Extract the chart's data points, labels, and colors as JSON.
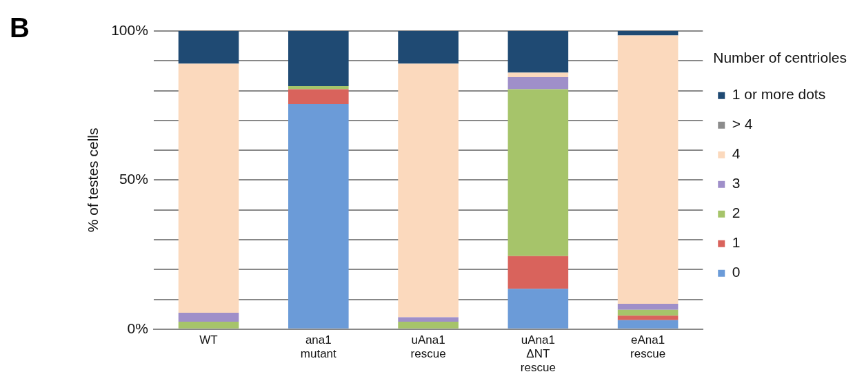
{
  "chart_data": {
    "type": "bar",
    "stacked": true,
    "categories": [
      "WT",
      "ana1\nmutant",
      "uAna1\nrescue",
      "uAna1\nΔNT\nrescue",
      "eAna1\nrescue"
    ],
    "ylabel": "% of testes cells",
    "legend_title": "Number of centrioles",
    "legend": "right",
    "ylim": [
      0,
      100
    ],
    "yticks": [
      {
        "value": 0,
        "label": "0%"
      },
      {
        "value": 10,
        "label": null
      },
      {
        "value": 20,
        "label": null
      },
      {
        "value": 30,
        "label": null
      },
      {
        "value": 40,
        "label": null
      },
      {
        "value": 50,
        "label": "50%"
      },
      {
        "value": 60,
        "label": null
      },
      {
        "value": 70,
        "label": null
      },
      {
        "value": 80,
        "label": null
      },
      {
        "value": 90,
        "label": null
      },
      {
        "value": 100,
        "label": "100%"
      }
    ],
    "grid": "y",
    "annotations": [
      "B"
    ],
    "series": [
      {
        "name": "0",
        "color": "#6b9bd8",
        "values": [
          0,
          75.5,
          0,
          13.5,
          3
        ]
      },
      {
        "name": "1",
        "color": "#d9635c",
        "values": [
          0,
          5,
          0,
          11,
          1.5
        ]
      },
      {
        "name": "2",
        "color": "#a6c46a",
        "values": [
          2.5,
          1,
          2.5,
          56,
          2
        ]
      },
      {
        "name": "3",
        "color": "#9f8fc9",
        "values": [
          3,
          0,
          1.5,
          4,
          2
        ]
      },
      {
        "name": "4",
        "color": "#fbd9bd",
        "values": [
          83.5,
          0,
          85,
          1.5,
          90
        ]
      },
      {
        "name": "> 4",
        "color": "#8c8c8c",
        "values": [
          0,
          0,
          0,
          0,
          0
        ]
      },
      {
        "name": "1 or more dots",
        "color": "#1f4a73",
        "values": [
          11,
          18.5,
          11,
          14,
          1.5
        ]
      }
    ]
  }
}
